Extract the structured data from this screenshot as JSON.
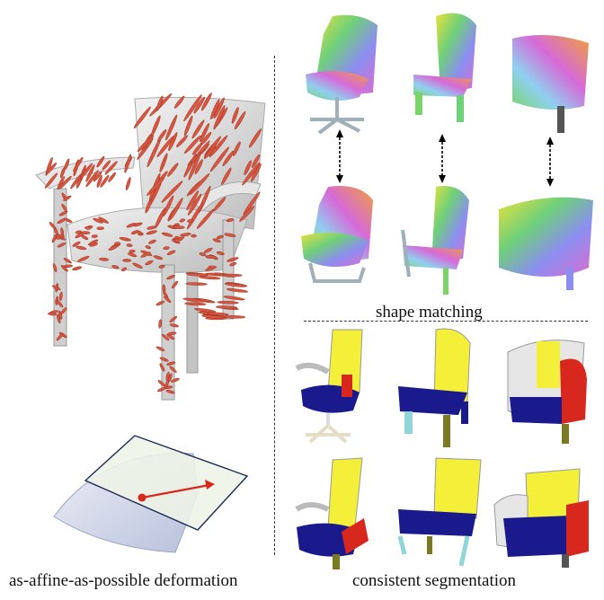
{
  "captions": {
    "left": "as-affine-as-possible deformation",
    "right": "consistent segmentation",
    "matching": "shape matching"
  },
  "colors": {
    "chair_surface": "#d9d9d9",
    "glyph_red": "#d9553f",
    "seg_yellow": "#f4f03a",
    "seg_navy": "#1a1a8c",
    "seg_red": "#d8281e",
    "seg_cyan": "#8fd6d8",
    "seg_olive": "#7a7a22",
    "plane_fill": "#eef4e6",
    "arrow_red": "#d8281e"
  },
  "icons": {
    "match_arrow": "double-headed-arrow-icon"
  }
}
